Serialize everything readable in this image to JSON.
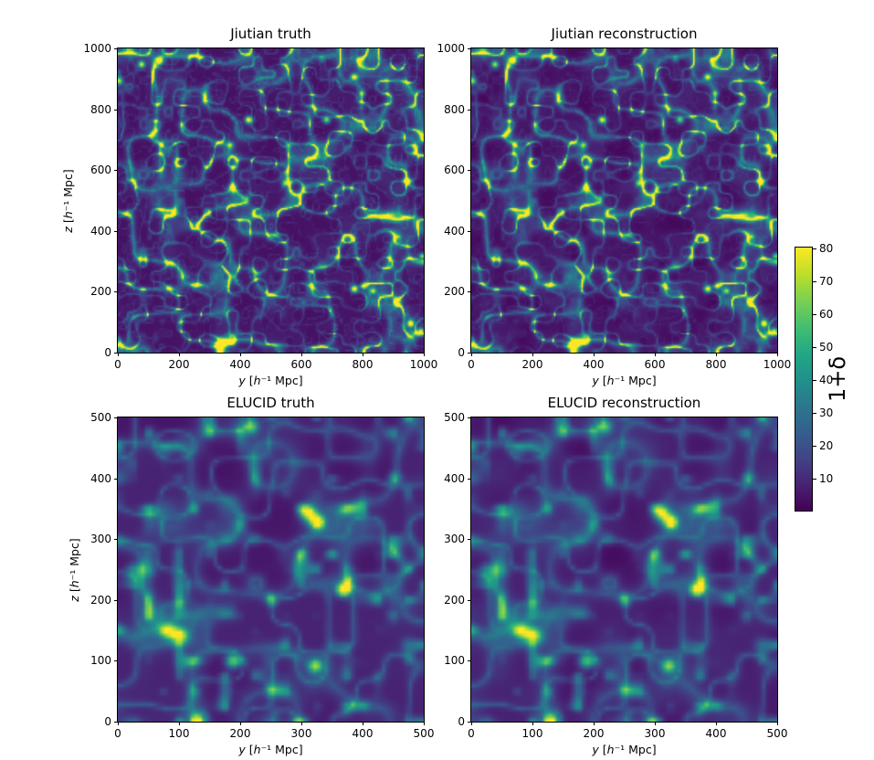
{
  "figure": {
    "background": "#ffffff"
  },
  "colorbar": {
    "label": "1+δ",
    "ticks": [
      10,
      20,
      30,
      40,
      50,
      60,
      70,
      80
    ],
    "value_range": [
      0,
      80.6
    ],
    "colormap": "viridis",
    "stops": [
      "#440154",
      "#482374",
      "#414487",
      "#355f8d",
      "#2a788e",
      "#21918c",
      "#22a884",
      "#44bf70",
      "#7ad151",
      "#bddf26",
      "#fde725"
    ]
  },
  "axis_label_parts": {
    "x": [
      [
        "y",
        1
      ],
      [
        " [",
        0
      ],
      [
        "h",
        1
      ],
      [
        "⁻¹",
        0
      ],
      [
        " Mpc]",
        0
      ]
    ],
    "y": [
      [
        "z",
        1
      ],
      [
        " [",
        0
      ],
      [
        "h",
        1
      ],
      [
        "⁻¹",
        0
      ],
      [
        " Mpc]",
        0
      ]
    ]
  },
  "chart_data": [
    {
      "type": "heatmap",
      "title": "Jiutian truth",
      "xlabel": "y [h⁻¹ Mpc]",
      "ylabel": "z [h⁻¹ Mpc]",
      "x_range": [
        0,
        1000
      ],
      "y_range": [
        0,
        1000
      ],
      "x_ticks": [
        0,
        200,
        400,
        600,
        800,
        1000
      ],
      "y_ticks": [
        0,
        200,
        400,
        600,
        800,
        1000
      ],
      "colormap": "viridis",
      "value_label": "1+δ",
      "value_range": [
        0,
        80
      ],
      "field": "dark-matter overdensity slice: filamentary cosmic web, dark voids, bright cluster knots",
      "bright_features": [
        {
          "y": 75,
          "z": 950,
          "value": 70,
          "r": 8
        },
        {
          "y": 135,
          "z": 962,
          "value": 82,
          "r": 8
        },
        {
          "y": 2,
          "z": 895,
          "value": 60,
          "r": 8
        },
        {
          "y": 425,
          "z": 768,
          "value": 85,
          "r": 8
        },
        {
          "y": 680,
          "z": 768,
          "value": 62,
          "r": 8
        },
        {
          "y": 770,
          "z": 908,
          "value": 78,
          "r": 8
        },
        {
          "y": 795,
          "z": 855,
          "value": 58,
          "r": 7
        },
        {
          "y": 545,
          "z": 560,
          "value": 55,
          "r": 8
        },
        {
          "y": 945,
          "z": 565,
          "value": 62,
          "r": 8
        },
        {
          "y": 365,
          "z": 685,
          "value": 58,
          "r": 7
        },
        {
          "y": 770,
          "z": 212,
          "value": 82,
          "r": 8
        },
        {
          "y": 802,
          "z": 222,
          "value": 72,
          "r": 7
        },
        {
          "y": 832,
          "z": 205,
          "value": 58,
          "r": 7
        },
        {
          "y": 955,
          "z": 98,
          "value": 78,
          "r": 8
        },
        {
          "y": 988,
          "z": 72,
          "value": 72,
          "r": 8
        },
        {
          "y": 993,
          "z": 320,
          "value": 60,
          "r": 7
        }
      ]
    },
    {
      "type": "heatmap",
      "title": "Jiutian reconstruction",
      "xlabel": "y [h⁻¹ Mpc]",
      "ylabel": "z [h⁻¹ Mpc]",
      "x_range": [
        0,
        1000
      ],
      "y_range": [
        0,
        1000
      ],
      "x_ticks": [
        0,
        200,
        400,
        600,
        800,
        1000
      ],
      "y_ticks": [
        0,
        200,
        400,
        600,
        800,
        1000
      ],
      "colormap": "viridis",
      "value_label": "1+δ",
      "value_range": [
        0,
        80
      ],
      "field": "reconstructed overdensity slice: same cosmic web as Jiutian truth, slightly smoother",
      "bright_features": [
        {
          "y": 75,
          "z": 950,
          "value": 66,
          "r": 8
        },
        {
          "y": 135,
          "z": 962,
          "value": 78,
          "r": 8
        },
        {
          "y": 2,
          "z": 895,
          "value": 56,
          "r": 8
        },
        {
          "y": 425,
          "z": 768,
          "value": 80,
          "r": 8
        },
        {
          "y": 680,
          "z": 768,
          "value": 58,
          "r": 8
        },
        {
          "y": 770,
          "z": 908,
          "value": 74,
          "r": 8
        },
        {
          "y": 795,
          "z": 855,
          "value": 54,
          "r": 7
        },
        {
          "y": 545,
          "z": 560,
          "value": 52,
          "r": 8
        },
        {
          "y": 945,
          "z": 565,
          "value": 58,
          "r": 8
        },
        {
          "y": 365,
          "z": 685,
          "value": 54,
          "r": 7
        },
        {
          "y": 770,
          "z": 212,
          "value": 78,
          "r": 8
        },
        {
          "y": 802,
          "z": 222,
          "value": 68,
          "r": 7
        },
        {
          "y": 832,
          "z": 205,
          "value": 55,
          "r": 7
        },
        {
          "y": 955,
          "z": 98,
          "value": 74,
          "r": 8
        },
        {
          "y": 988,
          "z": 72,
          "value": 68,
          "r": 8
        },
        {
          "y": 993,
          "z": 320,
          "value": 56,
          "r": 7
        }
      ]
    },
    {
      "type": "heatmap",
      "title": "ELUCID truth",
      "xlabel": "y [h⁻¹ Mpc]",
      "ylabel": "z [h⁻¹ Mpc]",
      "x_range": [
        0,
        500
      ],
      "y_range": [
        0,
        500
      ],
      "x_ticks": [
        0,
        100,
        200,
        300,
        400,
        500
      ],
      "y_ticks": [
        0,
        100,
        200,
        300,
        400,
        500
      ],
      "colormap": "viridis",
      "value_label": "1+δ",
      "value_range": [
        0,
        80
      ],
      "field": "smoothed overdensity slice: blobby teal clumps on purple background",
      "bright_features": [
        {
          "y": 308,
          "z": 346,
          "value": 70,
          "r": 9
        },
        {
          "y": 323,
          "z": 331,
          "value": 82,
          "r": 8
        },
        {
          "y": 365,
          "z": 220,
          "value": 88,
          "r": 7
        },
        {
          "y": 98,
          "z": 145,
          "value": 62,
          "r": 9
        },
        {
          "y": 80,
          "z": 152,
          "value": 50,
          "r": 9
        },
        {
          "y": 185,
          "z": 103,
          "value": 55,
          "r": 8
        },
        {
          "y": 128,
          "z": 4,
          "value": 88,
          "r": 7
        },
        {
          "y": 215,
          "z": 488,
          "value": 48,
          "r": 8
        },
        {
          "y": 320,
          "z": 95,
          "value": 52,
          "r": 8
        }
      ]
    },
    {
      "type": "heatmap",
      "title": "ELUCID reconstruction",
      "xlabel": "y [h⁻¹ Mpc]",
      "ylabel": "z [h⁻¹ Mpc]",
      "x_range": [
        0,
        500
      ],
      "y_range": [
        0,
        500
      ],
      "x_ticks": [
        0,
        100,
        200,
        300,
        400,
        500
      ],
      "y_ticks": [
        0,
        100,
        200,
        300,
        400,
        500
      ],
      "colormap": "viridis",
      "value_label": "1+δ",
      "value_range": [
        0,
        80
      ],
      "field": "reconstructed smoothed overdensity slice: same structure as ELUCID truth",
      "bright_features": [
        {
          "y": 308,
          "z": 346,
          "value": 66,
          "r": 9
        },
        {
          "y": 323,
          "z": 331,
          "value": 78,
          "r": 8
        },
        {
          "y": 365,
          "z": 220,
          "value": 85,
          "r": 7
        },
        {
          "y": 98,
          "z": 145,
          "value": 58,
          "r": 9
        },
        {
          "y": 80,
          "z": 152,
          "value": 47,
          "r": 9
        },
        {
          "y": 185,
          "z": 103,
          "value": 52,
          "r": 8
        },
        {
          "y": 128,
          "z": 4,
          "value": 85,
          "r": 7
        },
        {
          "y": 215,
          "z": 488,
          "value": 45,
          "r": 8
        },
        {
          "y": 320,
          "z": 95,
          "value": 49,
          "r": 8
        }
      ]
    }
  ]
}
